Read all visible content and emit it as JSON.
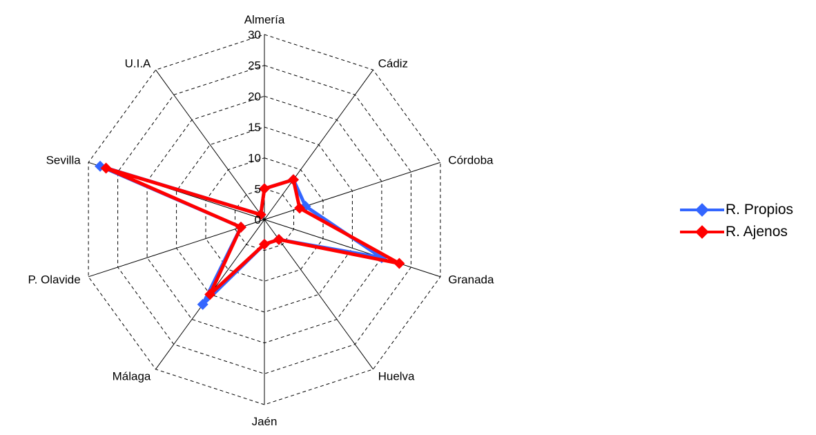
{
  "chart_data": {
    "type": "radar",
    "categories": [
      "Almería",
      "Cádiz",
      "Córdoba",
      "Granada",
      "Huelva",
      "Jaén",
      "Málaga",
      "P. Olavide",
      "Sevilla",
      "U.I.A"
    ],
    "series": [
      {
        "name": "R. Propios",
        "color": "#3366ff",
        "values": [
          5,
          8,
          7,
          20,
          4,
          4,
          17,
          4,
          28,
          1
        ]
      },
      {
        "name": "R. Ajenos",
        "color": "#ff0000",
        "values": [
          5,
          8,
          6,
          23,
          4,
          4,
          15,
          4,
          27,
          1
        ]
      }
    ],
    "axis": {
      "min": 0,
      "max": 30,
      "ticks": [
        0,
        5,
        10,
        15,
        20,
        25,
        30
      ]
    },
    "grid": true,
    "legend": "right"
  }
}
